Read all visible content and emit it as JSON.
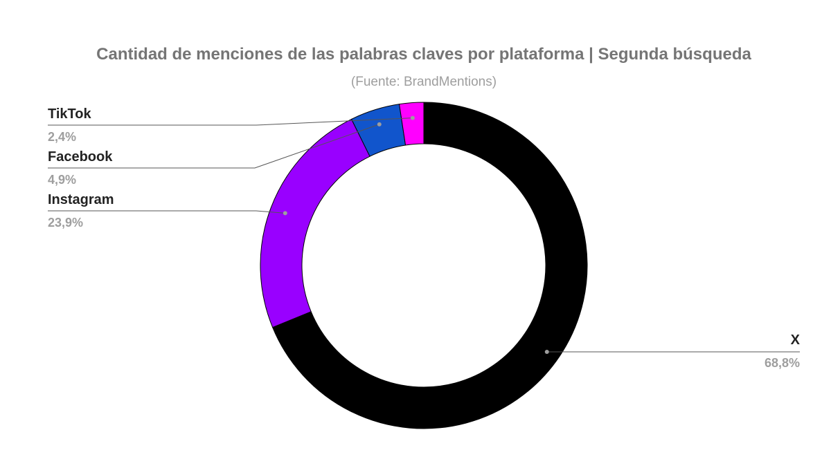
{
  "chart_data": {
    "type": "pie",
    "donut": true,
    "title": "Cantidad de menciones de las palabras claves por plataforma | Segunda búsqueda",
    "subtitle": "(Fuente: BrandMentions)",
    "slices": [
      {
        "name": "X",
        "value": 68.8,
        "label": "68,8%",
        "color": "#000000"
      },
      {
        "name": "Instagram",
        "value": 23.9,
        "label": "23,9%",
        "color": "#9900ff"
      },
      {
        "name": "Facebook",
        "value": 4.9,
        "label": "4,9%",
        "color": "#1155cc"
      },
      {
        "name": "TikTok",
        "value": 2.4,
        "label": "2,4%",
        "color": "#ff00ff"
      }
    ]
  }
}
